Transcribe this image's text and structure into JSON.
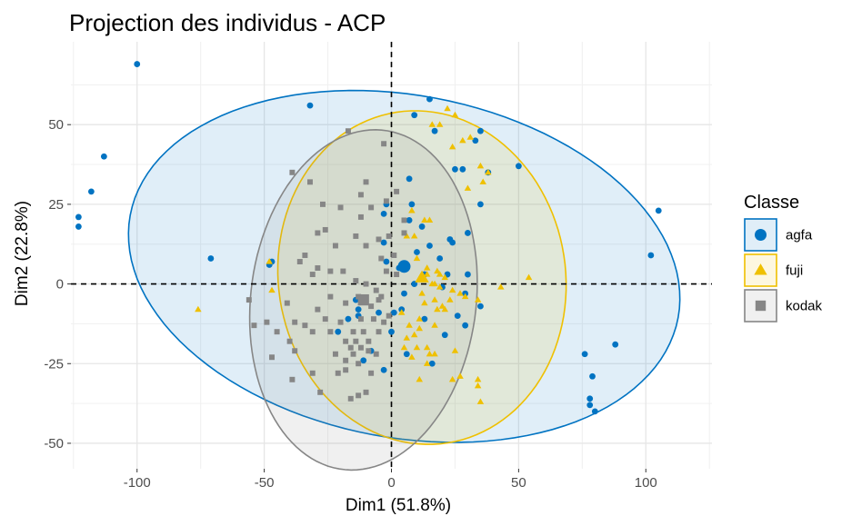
{
  "chart_data": {
    "type": "scatter",
    "title": "Projection des individus - ACP",
    "xlabel": "Dim1 (51.8%)",
    "ylabel": "Dim2 (22.8%)",
    "xlim": [
      -126,
      126
    ],
    "ylim": [
      -58,
      76
    ],
    "x_ticks": [
      -100,
      -50,
      0,
      50,
      100
    ],
    "y_ticks": [
      -50,
      -25,
      0,
      25,
      50
    ],
    "x_tick_labels": [
      "-100",
      "-50",
      "0",
      "50",
      "100"
    ],
    "y_tick_labels": [
      "-50",
      "-25",
      "0",
      "25",
      "50"
    ],
    "grid": true,
    "reference_lines": {
      "x": 0,
      "y": 0,
      "style": "dashed"
    },
    "legend": {
      "title": "Classe",
      "position": "right"
    },
    "series": [
      {
        "name": "agfa",
        "color": "#0073C2",
        "marker": "circle",
        "centroid": [
          5,
          5.5
        ],
        "ellipse": {
          "cx": 5,
          "cy": 5.5,
          "rx": 109,
          "ry": 54,
          "angle": -7
        },
        "points": [
          [
            -100,
            69
          ],
          [
            -113,
            40
          ],
          [
            -118,
            29
          ],
          [
            -123,
            21
          ],
          [
            -123,
            18
          ],
          [
            -71,
            8
          ],
          [
            -32,
            56
          ],
          [
            -47,
            7
          ],
          [
            -48,
            6
          ],
          [
            80,
            -40
          ],
          [
            105,
            23
          ],
          [
            102,
            9
          ],
          [
            88,
            -19
          ],
          [
            79,
            -29
          ],
          [
            78,
            -36
          ],
          [
            78,
            -38
          ],
          [
            76,
            -22
          ],
          [
            50,
            37
          ],
          [
            33,
            45
          ],
          [
            35,
            48
          ],
          [
            38,
            35
          ],
          [
            30,
            16
          ],
          [
            35,
            25
          ],
          [
            28,
            36
          ],
          [
            15,
            58
          ],
          [
            9,
            53
          ],
          [
            17,
            48
          ],
          [
            25,
            36
          ],
          [
            -2,
            25
          ],
          [
            -3,
            22
          ],
          [
            7,
            33
          ],
          [
            8,
            25
          ],
          [
            7,
            20
          ],
          [
            12,
            18
          ],
          [
            10,
            10
          ],
          [
            15,
            12
          ],
          [
            19,
            8
          ],
          [
            13,
            3
          ],
          [
            9,
            0
          ],
          [
            5,
            -3
          ],
          [
            -2,
            7
          ],
          [
            -3,
            13
          ],
          [
            -5,
            -9
          ],
          [
            0,
            -15
          ],
          [
            -13,
            -10
          ],
          [
            -11,
            -24
          ],
          [
            -8,
            -21
          ],
          [
            -21,
            -15
          ],
          [
            -17,
            -11
          ],
          [
            -13,
            -8
          ],
          [
            4,
            -8
          ],
          [
            6,
            -22
          ],
          [
            16,
            -25
          ],
          [
            21,
            -16
          ],
          [
            26,
            -10
          ],
          [
            35,
            -7
          ],
          [
            29,
            -13
          ],
          [
            -3,
            -27
          ],
          [
            3,
            5
          ],
          [
            -14,
            -5
          ],
          [
            20,
            -1
          ],
          [
            24,
            13
          ],
          [
            30,
            3
          ],
          [
            29,
            -3
          ],
          [
            13,
            -11
          ],
          [
            22,
            3
          ],
          [
            23,
            14
          ],
          [
            1,
            -9
          ]
        ]
      },
      {
        "name": "fuji",
        "color": "#EFC000",
        "marker": "triangle",
        "centroid": [
          12,
          2
        ],
        "ellipse": {
          "cx": 12,
          "cy": 2,
          "rx": 57,
          "ry": 52,
          "angle": -15
        },
        "points": [
          [
            -76,
            -8
          ],
          [
            -48,
            7
          ],
          [
            -47,
            -2
          ],
          [
            54,
            2
          ],
          [
            43,
            -1
          ],
          [
            35,
            -37
          ],
          [
            34,
            -30
          ],
          [
            34,
            -32
          ],
          [
            27,
            -29
          ],
          [
            25,
            -21
          ],
          [
            24,
            -30
          ],
          [
            17,
            -22
          ],
          [
            15,
            -22
          ],
          [
            11,
            -30
          ],
          [
            11,
            -14
          ],
          [
            11,
            -11
          ],
          [
            17,
            -13
          ],
          [
            14,
            -20
          ],
          [
            18,
            -8
          ],
          [
            20,
            -7
          ],
          [
            27,
            -3
          ],
          [
            34,
            -5
          ],
          [
            29,
            -4
          ],
          [
            24,
            -2
          ],
          [
            23,
            -5
          ],
          [
            21,
            -8
          ],
          [
            24,
            43
          ],
          [
            28,
            45
          ],
          [
            22,
            55
          ],
          [
            16,
            50
          ],
          [
            19,
            50
          ],
          [
            25,
            53
          ],
          [
            31,
            46
          ],
          [
            36,
            32
          ],
          [
            38,
            35
          ],
          [
            35,
            37
          ],
          [
            30,
            30
          ],
          [
            8,
            23
          ],
          [
            13,
            20
          ],
          [
            9,
            15
          ],
          [
            15,
            20
          ],
          [
            6,
            15
          ],
          [
            10,
            8
          ],
          [
            14,
            5
          ],
          [
            12,
            2
          ],
          [
            14,
            3
          ],
          [
            18,
            4
          ],
          [
            17,
            0
          ],
          [
            19,
            -1
          ],
          [
            17,
            -5
          ],
          [
            10,
            -20
          ],
          [
            14,
            -25
          ],
          [
            9,
            -16
          ],
          [
            8,
            -23
          ],
          [
            16,
            0
          ],
          [
            19,
            3
          ],
          [
            12,
            -3
          ],
          [
            13,
            -6
          ],
          [
            21,
            2
          ],
          [
            4,
            -9
          ],
          [
            6,
            -17
          ],
          [
            7,
            -13
          ],
          [
            5,
            -20
          ]
        ]
      },
      {
        "name": "kodak",
        "color": "#868686",
        "marker": "square",
        "centroid": [
          -11,
          -5
        ],
        "ellipse": {
          "cx": -11,
          "cy": -5,
          "rx": 44,
          "ry": 54,
          "angle": -15
        },
        "points": [
          [
            -39,
            35
          ],
          [
            -32,
            32
          ],
          [
            -17,
            48
          ],
          [
            -3,
            44
          ],
          [
            -10,
            32
          ],
          [
            -12,
            28
          ],
          [
            -27,
            25
          ],
          [
            -20,
            24
          ],
          [
            -12,
            21
          ],
          [
            -8,
            24
          ],
          [
            -2,
            26
          ],
          [
            2,
            29
          ],
          [
            5,
            20
          ],
          [
            5,
            16
          ],
          [
            -1,
            15
          ],
          [
            -5,
            14
          ],
          [
            -4,
            8
          ],
          [
            -10,
            12
          ],
          [
            -14,
            15
          ],
          [
            -22,
            12
          ],
          [
            -26,
            17
          ],
          [
            -29,
            16
          ],
          [
            -34,
            9
          ],
          [
            -29,
            5
          ],
          [
            -36,
            7
          ],
          [
            -31,
            3
          ],
          [
            -24,
            4
          ],
          [
            -19,
            4
          ],
          [
            -14,
            1
          ],
          [
            -10,
            0
          ],
          [
            -6,
            -2
          ],
          [
            -2,
            4
          ],
          [
            1,
            9
          ],
          [
            2,
            3
          ],
          [
            -4,
            -4
          ],
          [
            -8,
            -7
          ],
          [
            -13,
            -4
          ],
          [
            -18,
            -6
          ],
          [
            -24,
            -4
          ],
          [
            -29,
            -8
          ],
          [
            -34,
            -13
          ],
          [
            -41,
            -6
          ],
          [
            -38,
            -12
          ],
          [
            -49,
            -12
          ],
          [
            -56,
            -5
          ],
          [
            -54,
            -13
          ],
          [
            -45,
            -15
          ],
          [
            -47,
            -23
          ],
          [
            -38,
            -21
          ],
          [
            -31,
            -28
          ],
          [
            -22,
            -22
          ],
          [
            -18,
            -24
          ],
          [
            -13,
            -25
          ],
          [
            -9,
            -18
          ],
          [
            -5,
            -15
          ],
          [
            -3,
            -12
          ],
          [
            -1,
            -10
          ],
          [
            -5,
            -5
          ],
          [
            -12,
            -11
          ],
          [
            -15,
            -15
          ],
          [
            -18,
            -18
          ],
          [
            -20,
            -12
          ],
          [
            -24,
            -15
          ],
          [
            -26,
            -11
          ],
          [
            -31,
            -15
          ],
          [
            -40,
            -18
          ],
          [
            -39,
            -30
          ],
          [
            -28,
            -34
          ],
          [
            -16,
            -36
          ],
          [
            -13,
            -35
          ],
          [
            -10,
            -34
          ],
          [
            -8,
            -28
          ],
          [
            -6,
            -22
          ],
          [
            -12,
            -20
          ],
          [
            -15,
            -22
          ],
          [
            -18,
            -27
          ],
          [
            -21,
            -28
          ],
          [
            -10,
            -5
          ],
          [
            -11,
            -15
          ],
          [
            -14,
            -18
          ],
          [
            -16,
            -20
          ],
          [
            -7,
            -11
          ],
          [
            -9,
            -21
          ]
        ]
      }
    ]
  }
}
